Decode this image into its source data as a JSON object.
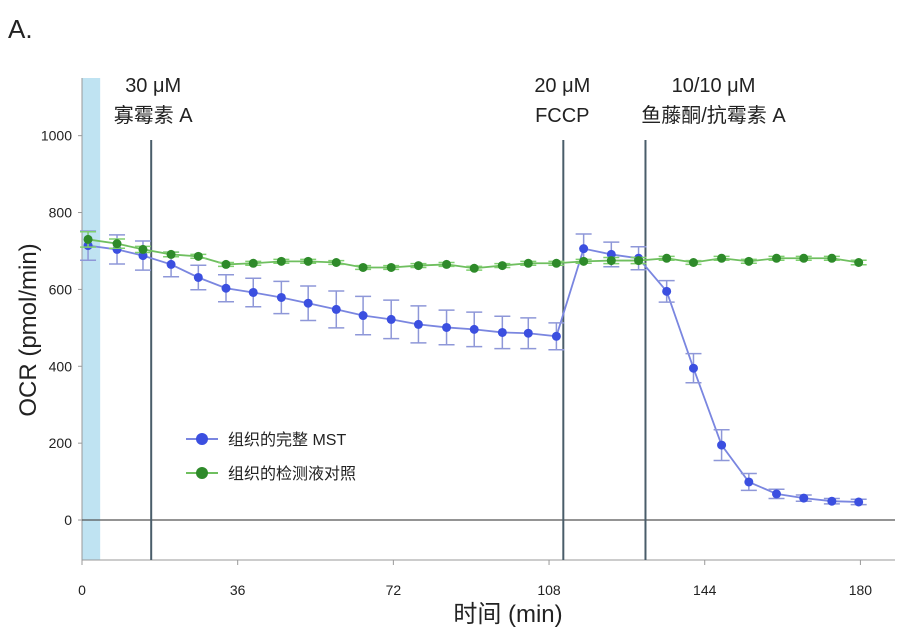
{
  "panel_label": "A.",
  "chart_data": {
    "type": "line",
    "title": "",
    "xlabel": "时间 (min)",
    "ylabel": "OCR (pmol/min)",
    "xlim": [
      0,
      188
    ],
    "ylim": [
      -104,
      1150
    ],
    "xticks": [
      0,
      36,
      72,
      108,
      144,
      180
    ],
    "yticks": [
      0,
      200,
      400,
      600,
      800,
      1000
    ],
    "grid": false,
    "legend_position": "lower-left",
    "baseline_band": [
      0,
      4.2
    ],
    "injections": [
      {
        "x": 16,
        "label_line1": "30 μM",
        "label_line2": "寡霉素 A"
      },
      {
        "x": 111.3,
        "label_line1": "20 μM",
        "label_line2": "FCCP"
      },
      {
        "x": 130.3,
        "label_line1": "10/10 μM",
        "label_line2": "鱼藤酮/抗霉素 A"
      }
    ],
    "x": [
      1.4,
      8.1,
      14.1,
      20.6,
      26.9,
      33.3,
      39.6,
      46.1,
      52.3,
      58.8,
      65.0,
      71.5,
      77.8,
      84.3,
      90.7,
      97.2,
      103.2,
      109.7,
      116.0,
      122.4,
      128.7,
      135.2,
      141.4,
      147.9,
      154.2,
      160.6,
      166.9,
      173.4,
      179.6
    ],
    "series": [
      {
        "name": "组织的完整 MST",
        "color": "#3b4fe0",
        "values": [
          714,
          704,
          688,
          665,
          631,
          603,
          592,
          579,
          564,
          548,
          532,
          522,
          509,
          501,
          496,
          488,
          486,
          478,
          706,
          691,
          681,
          595,
          395,
          195,
          99,
          68,
          57,
          49,
          47
        ],
        "errors": [
          38,
          38,
          38,
          32,
          32,
          35,
          37,
          42,
          45,
          48,
          50,
          50,
          48,
          45,
          45,
          42,
          40,
          35,
          38,
          32,
          30,
          28,
          38,
          40,
          22,
          12,
          8,
          7,
          7
        ]
      },
      {
        "name": "组织的检测液对照",
        "color": "#2e8a2a",
        "values": [
          730,
          719,
          704,
          691,
          686,
          665,
          668,
          673,
          673,
          670,
          657,
          657,
          662,
          665,
          655,
          662,
          668,
          668,
          673,
          675,
          675,
          681,
          670,
          681,
          673,
          681,
          681,
          681,
          670
        ],
        "errors": [
          20,
          12,
          8,
          6,
          5,
          5,
          5,
          5,
          5,
          5,
          5,
          5,
          5,
          5,
          5,
          5,
          5,
          5,
          5,
          8,
          8,
          5,
          5,
          5,
          5,
          5,
          5,
          5,
          6
        ]
      }
    ]
  }
}
